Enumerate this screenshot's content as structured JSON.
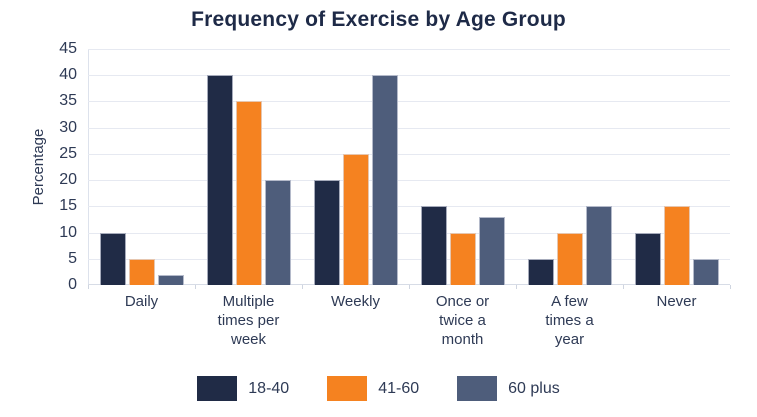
{
  "chart_data": {
    "type": "bar",
    "title": "Frequency of Exercise by Age Group",
    "xlabel": "",
    "ylabel": "Percentage",
    "ylim": [
      0,
      45
    ],
    "yticks": [
      0,
      5,
      10,
      15,
      20,
      25,
      30,
      35,
      40,
      45
    ],
    "grid": true,
    "legend_position": "bottom",
    "categories": [
      "Daily",
      "Multiple times per week",
      "Weekly",
      "Once or twice a month",
      "A few times a year",
      "Never"
    ],
    "category_labels_wrapped": [
      "Daily",
      "Multiple\ntimes per\nweek",
      "Weekly",
      "Once or\ntwice a\nmonth",
      "A few\ntimes a\nyear",
      "Never"
    ],
    "series": [
      {
        "name": "18-40",
        "color": "#202b46",
        "values": [
          10,
          40,
          20,
          15,
          5,
          10
        ]
      },
      {
        "name": "41-60",
        "color": "#f58220",
        "values": [
          5,
          35,
          25,
          10,
          10,
          15
        ]
      },
      {
        "name": "60 plus",
        "color": "#4e5d7b",
        "values": [
          2,
          20,
          40,
          13,
          15,
          5
        ]
      }
    ],
    "colors": {
      "title_text": "#1e2a47",
      "axis_text": "#2e3a55",
      "gridline": "#e6e9f1",
      "axis_line": "#dde2ec",
      "background": "#ffffff"
    }
  }
}
